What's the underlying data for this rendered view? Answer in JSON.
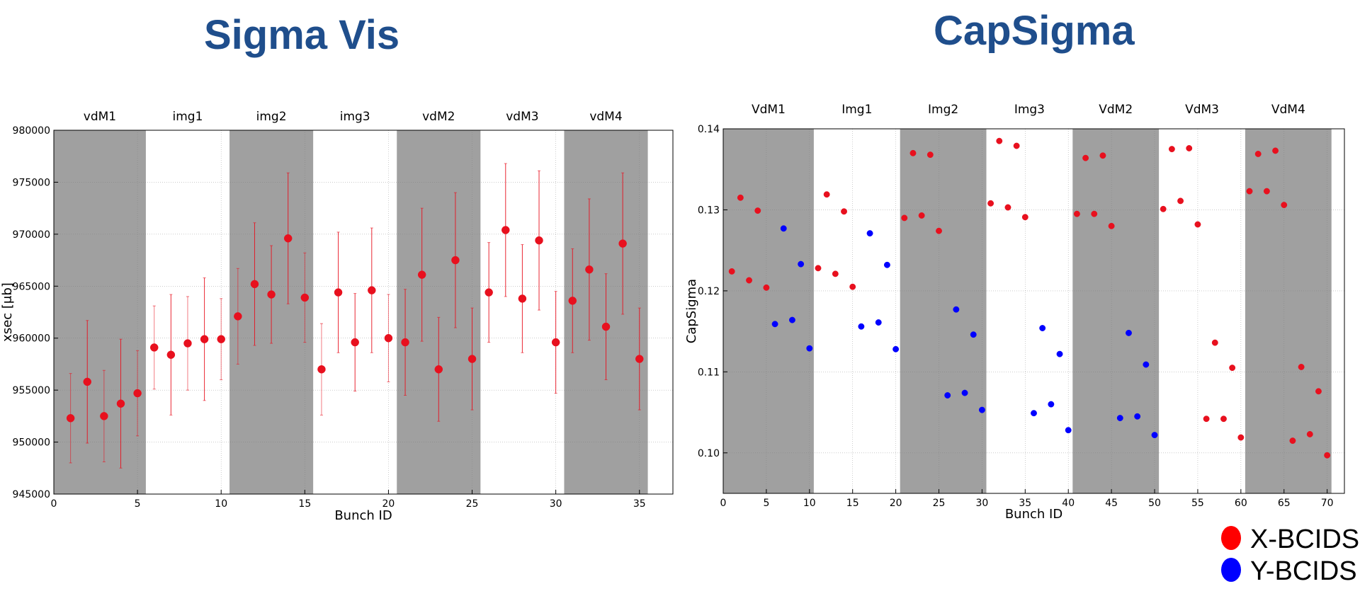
{
  "left_title": "Sigma Vis",
  "right_title": "CapSigma",
  "legend": [
    {
      "label": "X-BCIDS",
      "color": "#ff0000"
    },
    {
      "label": "Y-BCIDS",
      "color": "#0000ff"
    }
  ],
  "colors": {
    "title": "#1f4e8c",
    "shade": "#a0a0a0",
    "marker": "#e8101e"
  },
  "chart_data": [
    {
      "type": "scatter",
      "title": "",
      "xlabel": "Bunch ID",
      "ylabel": "xsec [μb]",
      "xlim": [
        0,
        37
      ],
      "ylim": [
        945000,
        980000
      ],
      "xticks": [
        0,
        5,
        10,
        15,
        20,
        25,
        30,
        35
      ],
      "yticks": [
        945000,
        950000,
        955000,
        960000,
        965000,
        970000,
        975000,
        980000
      ],
      "grid": true,
      "scan_groups": [
        {
          "label": "vdM1",
          "x_range": [
            0,
            5.5
          ],
          "shaded": true
        },
        {
          "label": "img1",
          "x_range": [
            5.5,
            10.5
          ],
          "shaded": false
        },
        {
          "label": "img2",
          "x_range": [
            10.5,
            15.5
          ],
          "shaded": true
        },
        {
          "label": "img3",
          "x_range": [
            15.5,
            20.5
          ],
          "shaded": false
        },
        {
          "label": "vdM2",
          "x_range": [
            20.5,
            25.5
          ],
          "shaded": true
        },
        {
          "label": "vdM3",
          "x_range": [
            25.5,
            30.5
          ],
          "shaded": false
        },
        {
          "label": "vdM4",
          "x_range": [
            30.5,
            35.5
          ],
          "shaded": true
        }
      ],
      "series": [
        {
          "x": [
            1,
            2,
            3,
            4,
            5,
            6,
            7,
            8,
            9,
            10,
            11,
            12,
            13,
            14,
            15,
            16,
            17,
            18,
            19,
            20,
            21,
            22,
            23,
            24,
            25,
            26,
            27,
            28,
            29,
            30,
            31,
            32,
            33,
            34,
            35
          ],
          "y": [
            952300,
            955800,
            952500,
            953700,
            954700,
            959100,
            958400,
            959500,
            959900,
            959900,
            962100,
            965200,
            964200,
            969600,
            963900,
            957000,
            964400,
            959600,
            964600,
            960000,
            959600,
            966100,
            957000,
            967500,
            958000,
            964400,
            970400,
            963800,
            969400,
            959600,
            963600,
            966600,
            961100,
            969100,
            958000
          ],
          "err": [
            4300,
            5900,
            4400,
            6200,
            4100,
            4000,
            5800,
            4500,
            5900,
            3900,
            4600,
            5900,
            4700,
            6300,
            4300,
            4400,
            5800,
            4700,
            6000,
            4200,
            5100,
            6400,
            5000,
            6500,
            4900,
            4800,
            6400,
            5200,
            6700,
            4900,
            5000,
            6800,
            5100,
            6800,
            4900
          ]
        }
      ]
    },
    {
      "type": "scatter",
      "title": "",
      "xlabel": "Bunch ID",
      "ylabel": "CapSigma",
      "xlim": [
        0,
        72
      ],
      "ylim": [
        0.095,
        0.14
      ],
      "xticks": [
        0,
        5,
        10,
        15,
        20,
        25,
        30,
        35,
        40,
        45,
        50,
        55,
        60,
        65,
        70
      ],
      "yticks": [
        0.1,
        0.11,
        0.12,
        0.13,
        0.14
      ],
      "ytick_labels": [
        "0.10",
        "0.11",
        "0.12",
        "0.13",
        "0.14"
      ],
      "grid": true,
      "scan_groups": [
        {
          "label": "VdM1",
          "x_range": [
            0,
            10.5
          ],
          "shaded": true
        },
        {
          "label": "Img1",
          "x_range": [
            10.5,
            20.5
          ],
          "shaded": false
        },
        {
          "label": "Img2",
          "x_range": [
            20.5,
            30.5
          ],
          "shaded": true
        },
        {
          "label": "Img3",
          "x_range": [
            30.5,
            40.5
          ],
          "shaded": false
        },
        {
          "label": "VdM2",
          "x_range": [
            40.5,
            50.5
          ],
          "shaded": true
        },
        {
          "label": "VdM3",
          "x_range": [
            50.5,
            60.5
          ],
          "shaded": false
        },
        {
          "label": "VdM4",
          "x_range": [
            60.5,
            70.5
          ],
          "shaded": true
        }
      ],
      "series": [
        {
          "name": "X-BCIDS",
          "color": "#e8101e",
          "x": [
            1,
            2,
            3,
            4,
            5,
            11,
            12,
            13,
            14,
            15,
            21,
            22,
            23,
            24,
            25,
            31,
            32,
            33,
            34,
            35,
            41,
            42,
            43,
            44,
            45,
            51,
            52,
            53,
            54,
            55,
            56,
            57,
            58,
            59,
            60,
            61,
            62,
            63,
            64,
            65,
            66,
            67,
            68,
            69,
            70
          ],
          "y": [
            0.1224,
            0.1315,
            0.1213,
            0.1299,
            0.1204,
            0.1228,
            0.1319,
            0.1221,
            0.1298,
            0.1205,
            0.129,
            0.137,
            0.1293,
            0.1368,
            0.1274,
            0.1308,
            0.1385,
            0.1303,
            0.1379,
            0.1291,
            0.1295,
            0.1364,
            0.1295,
            0.1367,
            0.128,
            0.1301,
            0.1375,
            0.1311,
            0.1376,
            0.1282,
            0.1042,
            0.1136,
            0.1042,
            0.1105,
            0.1019,
            0.1323,
            0.1369,
            0.1323,
            0.1373,
            0.1306,
            0.1015,
            0.1106,
            0.1023,
            0.1076,
            0.0997
          ]
        },
        {
          "name": "Y-BCIDS",
          "color": "#0000ff",
          "x": [
            6,
            7,
            8,
            9,
            10,
            16,
            17,
            18,
            19,
            20,
            26,
            27,
            28,
            29,
            30,
            36,
            37,
            38,
            39,
            40,
            46,
            47,
            48,
            49,
            50
          ],
          "y": [
            0.1159,
            0.1277,
            0.1164,
            0.1233,
            0.1129,
            0.1156,
            0.1271,
            0.1161,
            0.1232,
            0.1128,
            0.1071,
            0.1177,
            0.1074,
            0.1146,
            0.1053,
            0.1049,
            0.1154,
            0.106,
            0.1122,
            0.1028,
            0.1043,
            0.1148,
            0.1045,
            0.1109,
            0.1022
          ]
        }
      ]
    }
  ]
}
